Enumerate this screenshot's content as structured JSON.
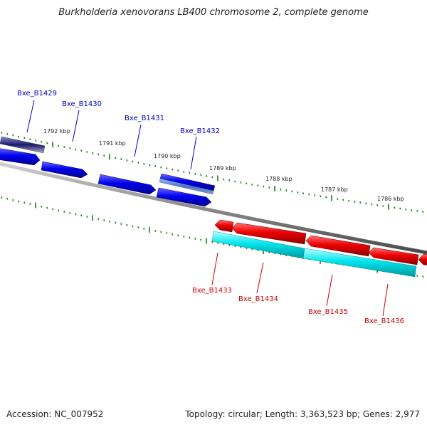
{
  "header": {
    "title": "Burkholderia xenovorans LB400 chromosome 2, complete genome"
  },
  "footer": {
    "accession": "Accession: NC_007952",
    "summary": "Topology: circular; Length: 3,363,523 bp; Genes: 2,977"
  },
  "scale_labels": [
    "1792 kbp",
    "1791 kbp",
    "1790 kbp",
    "1789 kbp",
    "1788 kbp",
    "1787 kbp",
    "1786 kbp"
  ],
  "genes_forward": [
    {
      "label": "Bxe_B1429",
      "color": "#0000cc"
    },
    {
      "label": "Bxe_B1430",
      "color": "#0000cc"
    },
    {
      "label": "Bxe_B1431",
      "color": "#0000cc"
    },
    {
      "label": "Bxe_B1432",
      "color": "#0000cc"
    }
  ],
  "genes_reverse": [
    {
      "label": "Bxe_B1433",
      "color": "#cc0000"
    },
    {
      "label": "Bxe_B1434",
      "color": "#cc0000"
    },
    {
      "label": "Bxe_B1435",
      "color": "#cc0000"
    },
    {
      "label": "Bxe_B1436",
      "color": "#cc0000"
    }
  ],
  "colors": {
    "forward_cds": "#0000ee",
    "reverse_cds": "#ee0000",
    "reverse_feature": "#00e5ee",
    "forward_feature_dark": "#1a1a6e",
    "forward_feature_light": "#6a8fd8",
    "backbone": "#888888",
    "ticks": "#1a7a1a"
  }
}
